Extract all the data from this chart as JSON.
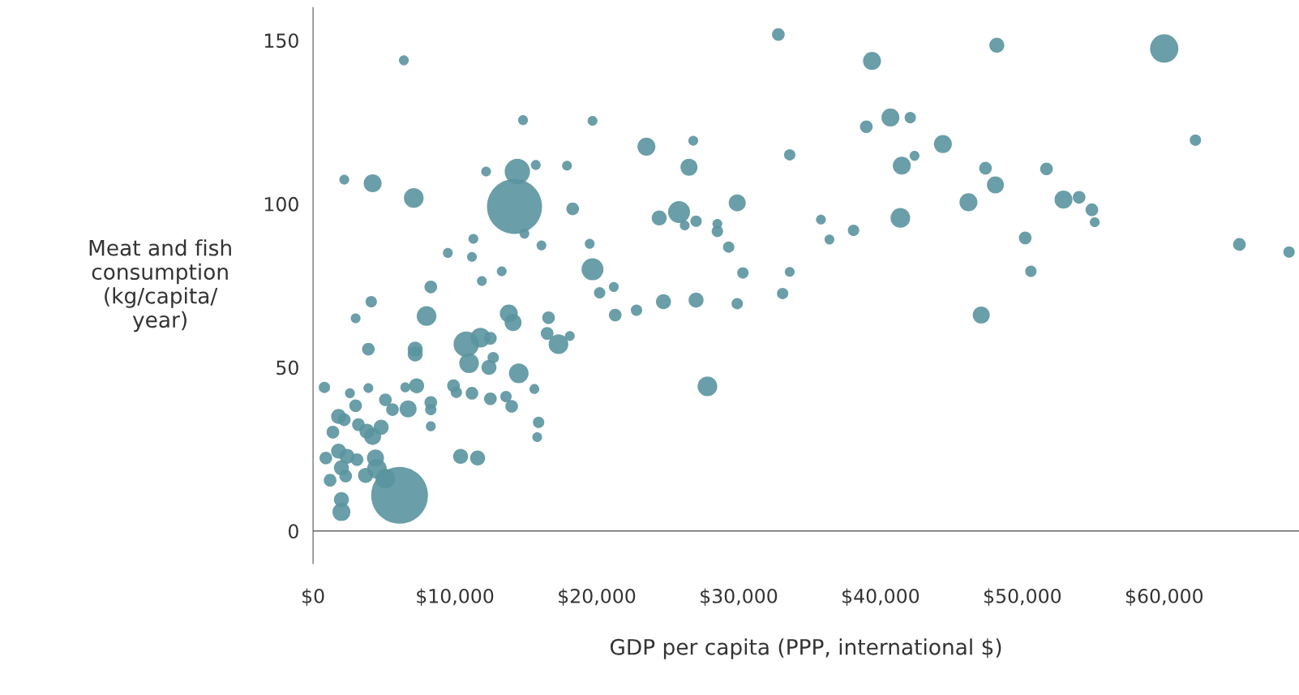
{
  "chart_data": {
    "type": "bubble",
    "xlabel": "GDP per capita (PPP, international $)",
    "ylabel": "Meat and fish\nconsumption\n(kg/capita/\nyear)",
    "xlim": [
      0,
      69500
    ],
    "ylim": [
      -10,
      160
    ],
    "xticks": [
      {
        "value": 0,
        "label": "$0"
      },
      {
        "value": 10000,
        "label": "$10,000"
      },
      {
        "value": 20000,
        "label": "$20,000"
      },
      {
        "value": 30000,
        "label": "$30,000"
      },
      {
        "value": 40000,
        "label": "$40,000"
      },
      {
        "value": 50000,
        "label": "$50,000"
      },
      {
        "value": 60000,
        "label": "$60,000"
      }
    ],
    "yticks": [
      0,
      50,
      100,
      150
    ],
    "grid": false,
    "legend": false,
    "ref_lines": [
      {
        "axis": "y",
        "value": 0,
        "color": "#666666"
      }
    ],
    "series": [
      {
        "color": "#5a949e",
        "x": [
          60000,
          32800,
          39400,
          48200,
          6400,
          40700,
          42100,
          39000,
          14800,
          19700,
          26800,
          62200,
          23500,
          44400,
          33600,
          42400,
          41500,
          26500,
          47400,
          51700,
          15700,
          17900,
          14400,
          12200,
          2200,
          4200,
          48100,
          14200,
          7100,
          29900,
          52900,
          54000,
          46200,
          54900,
          18300,
          25800,
          24400,
          41400,
          27000,
          26200,
          35800,
          55100,
          38100,
          28500,
          28500,
          14900,
          11300,
          36400,
          50200,
          19500,
          16100,
          29300,
          65300,
          68800,
          9500,
          11200,
          19700,
          13300,
          50600,
          30300,
          33600,
          11900,
          8300,
          21200,
          20200,
          33100,
          4100,
          27000,
          24700,
          29900,
          22800,
          3000,
          21300,
          8000,
          47100,
          13800,
          14100,
          16600,
          16500,
          18100,
          17300,
          11800,
          10800,
          12500,
          3900,
          7200,
          7200,
          12700,
          11000,
          12400,
          14500,
          800,
          3900,
          7300,
          9900,
          27800,
          15600,
          6500,
          2600,
          10100,
          11200,
          5100,
          12500,
          13600,
          8300,
          3000,
          6700,
          5600,
          14000,
          8300,
          1800,
          2200,
          15900,
          3200,
          8300,
          4800,
          3800,
          1400,
          4200,
          15800,
          10400,
          11600,
          1800,
          900,
          2400,
          3100,
          4400,
          2000,
          4500,
          1200,
          2300,
          3700,
          5100,
          2000,
          2000,
          6100
        ],
        "values": [
          147.5,
          151.8,
          143.7,
          148.5,
          143.9,
          126.4,
          126.4,
          123.6,
          125.6,
          125.4,
          119.3,
          119.5,
          117.5,
          118.3,
          115.0,
          114.7,
          111.7,
          111.2,
          110.9,
          110.7,
          111.9,
          111.7,
          109.9,
          109.9,
          107.4,
          106.3,
          105.8,
          99.2,
          101.8,
          100.3,
          101.3,
          102.0,
          100.5,
          98.2,
          98.5,
          97.5,
          95.7,
          95.7,
          94.7,
          93.4,
          95.2,
          94.4,
          91.9,
          93.9,
          91.6,
          90.9,
          89.3,
          89.1,
          89.6,
          87.8,
          87.3,
          86.8,
          87.6,
          85.3,
          85.0,
          83.8,
          80.0,
          79.4,
          79.4,
          78.9,
          79.2,
          76.4,
          74.6,
          74.6,
          72.8,
          72.6,
          70.1,
          70.6,
          70.1,
          69.5,
          67.5,
          65.0,
          66.0,
          65.7,
          66.0,
          66.5,
          63.7,
          65.2,
          60.4,
          59.6,
          57.1,
          59.1,
          57.1,
          58.9,
          55.6,
          55.6,
          54.1,
          53.0,
          51.3,
          50.0,
          48.2,
          43.9,
          43.7,
          44.4,
          44.4,
          44.2,
          43.4,
          43.9,
          42.1,
          42.4,
          42.1,
          40.1,
          40.4,
          41.1,
          39.3,
          38.3,
          37.3,
          37.1,
          38.1,
          37.1,
          35.0,
          34.0,
          33.2,
          32.5,
          32.0,
          31.7,
          30.5,
          30.2,
          28.9,
          28.7,
          22.8,
          22.3,
          24.4,
          22.3,
          22.8,
          21.8,
          22.3,
          19.3,
          19.0,
          15.5,
          16.8,
          17.0,
          16.0,
          9.6,
          5.8,
          10.9
        ],
        "sizes": [
          0.25,
          0.05,
          0.1,
          0.07,
          0.03,
          0.1,
          0.04,
          0.05,
          0.03,
          0.03,
          0.03,
          0.04,
          0.1,
          0.1,
          0.04,
          0.03,
          0.1,
          0.09,
          0.05,
          0.05,
          0.03,
          0.03,
          0.2,
          0.03,
          0.03,
          0.1,
          0.09,
          0.94,
          0.12,
          0.09,
          0.1,
          0.05,
          0.1,
          0.05,
          0.05,
          0.15,
          0.07,
          0.12,
          0.04,
          0.03,
          0.03,
          0.03,
          0.04,
          0.03,
          0.04,
          0.03,
          0.03,
          0.03,
          0.05,
          0.03,
          0.03,
          0.04,
          0.05,
          0.04,
          0.03,
          0.03,
          0.15,
          0.03,
          0.04,
          0.04,
          0.03,
          0.03,
          0.05,
          0.03,
          0.04,
          0.04,
          0.04,
          0.07,
          0.07,
          0.04,
          0.04,
          0.03,
          0.05,
          0.12,
          0.09,
          0.1,
          0.09,
          0.05,
          0.05,
          0.03,
          0.12,
          0.12,
          0.2,
          0.05,
          0.05,
          0.07,
          0.07,
          0.04,
          0.12,
          0.07,
          0.12,
          0.04,
          0.03,
          0.07,
          0.05,
          0.12,
          0.03,
          0.03,
          0.03,
          0.04,
          0.05,
          0.05,
          0.05,
          0.04,
          0.05,
          0.05,
          0.09,
          0.05,
          0.05,
          0.04,
          0.07,
          0.05,
          0.04,
          0.05,
          0.03,
          0.07,
          0.07,
          0.05,
          0.09,
          0.03,
          0.07,
          0.07,
          0.07,
          0.05,
          0.07,
          0.05,
          0.09,
          0.07,
          0.12,
          0.05,
          0.05,
          0.07,
          0.12,
          0.07,
          0.1,
          1.0
        ]
      }
    ]
  }
}
